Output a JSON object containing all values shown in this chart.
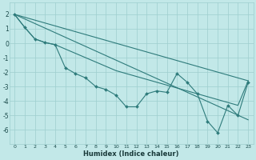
{
  "xlabel": "Humidex (Indice chaleur)",
  "bg_color": "#c2e8e8",
  "grid_color": "#9ecece",
  "line_color": "#2e7b7b",
  "xlim": [
    -0.5,
    23.5
  ],
  "ylim": [
    -7.0,
    2.8
  ],
  "xticks": [
    0,
    1,
    2,
    3,
    4,
    5,
    6,
    7,
    8,
    9,
    10,
    11,
    12,
    13,
    14,
    15,
    16,
    17,
    18,
    19,
    20,
    21,
    22,
    23
  ],
  "yticks": [
    -6,
    -5,
    -4,
    -3,
    -2,
    -1,
    0,
    1,
    2
  ],
  "zigzag_x": [
    0,
    1,
    2,
    3,
    4,
    5,
    6,
    7,
    8,
    9,
    10,
    11,
    12,
    13,
    14,
    15,
    16,
    17,
    18,
    19,
    20,
    21,
    22,
    23
  ],
  "zigzag_y": [
    2.0,
    1.1,
    0.3,
    0.05,
    -0.1,
    -1.7,
    -2.1,
    -2.4,
    -3.0,
    -3.2,
    -3.6,
    -4.4,
    -4.4,
    -3.5,
    -3.3,
    -3.4,
    -2.1,
    -2.7,
    -3.5,
    -5.4,
    -6.2,
    -4.3,
    -5.0,
    -2.7
  ],
  "upper_line_x": [
    0,
    23
  ],
  "upper_line_y": [
    2.0,
    -2.6
  ],
  "lower_line_x": [
    0,
    23
  ],
  "lower_line_y": [
    2.0,
    -5.3
  ],
  "smooth_x": [
    0,
    1,
    2,
    3,
    4,
    5,
    6,
    7,
    8,
    9,
    10,
    11,
    12,
    13,
    14,
    15,
    16,
    17,
    18,
    19,
    20,
    21,
    22,
    23
  ],
  "smooth_y": [
    2.0,
    1.1,
    0.3,
    0.05,
    -0.1,
    -0.4,
    -0.7,
    -1.0,
    -1.3,
    -1.6,
    -1.9,
    -2.1,
    -2.3,
    -2.5,
    -2.7,
    -2.9,
    -3.1,
    -3.3,
    -3.5,
    -3.7,
    -3.9,
    -4.1,
    -4.3,
    -2.6
  ]
}
